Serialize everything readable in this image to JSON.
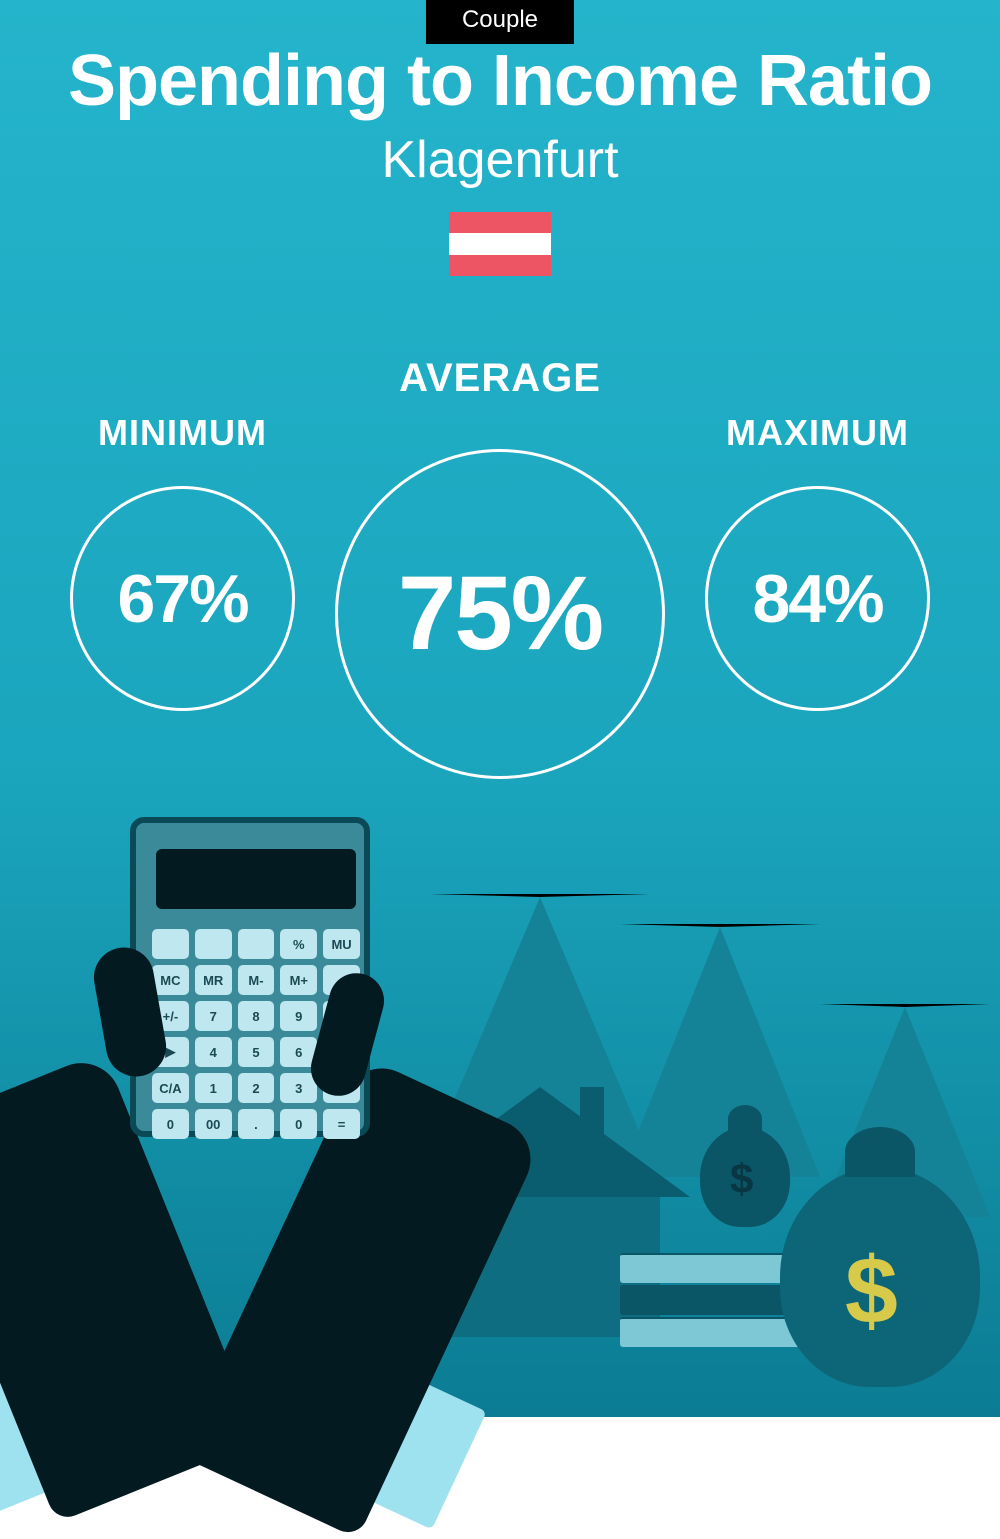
{
  "colors": {
    "bg": "#1aa5bd",
    "bg_gradient_top": "#24b4cb",
    "bg_gradient_bottom": "#0b7c93",
    "badge_bg": "#000000",
    "badge_text": "#ffffff",
    "title": "#ffffff",
    "city": "#ffffff",
    "circle_border": "#ffffff",
    "pct_text": "#ffffff",
    "flag_red": "#ed5565",
    "flag_white": "#ffffff",
    "arrow_fill": "#148398",
    "house_body": "#0e6d80",
    "house_roof": "#0a5d6e",
    "chimney": "#0a5d6e",
    "hand": "#031a21",
    "cuff": "#9fe2ef",
    "calc_body": "#3a8a9a",
    "calc_frame": "#0a4a56",
    "calc_screen": "#031a21",
    "calc_key": "#bfe7ef",
    "calc_key_text": "#1a4a54",
    "bag_large": "#0d6578",
    "bag_small": "#0a5566",
    "dollar_gold": "#d7c94a",
    "dollar_dark": "#083642",
    "cash_light": "#7ec8d6",
    "cash_dark": "#0a5566"
  },
  "badge": {
    "label": "Couple"
  },
  "title": "Spending to Income Ratio",
  "city": "Klagenfurt",
  "stats": {
    "minimum": {
      "label": "MINIMUM",
      "value": "67%"
    },
    "average": {
      "label": "AVERAGE",
      "value": "75%"
    },
    "maximum": {
      "label": "MAXIMUM",
      "value": "84%"
    }
  },
  "calc_keys_row1": [
    "",
    "",
    "",
    "%",
    "MU"
  ],
  "calc_keys_row2": [
    "MC",
    "MR",
    "M-",
    "M+",
    ":"
  ],
  "calc_keys_row3": [
    "+/-",
    "7",
    "8",
    "9",
    "x"
  ],
  "calc_keys_row4": [
    "▶",
    "4",
    "5",
    "6",
    "-"
  ],
  "calc_keys_row5": [
    "C/A",
    "1",
    "2",
    "3",
    "+"
  ],
  "calc_keys_row6": [
    "0",
    "00",
    ".",
    "0",
    "="
  ]
}
